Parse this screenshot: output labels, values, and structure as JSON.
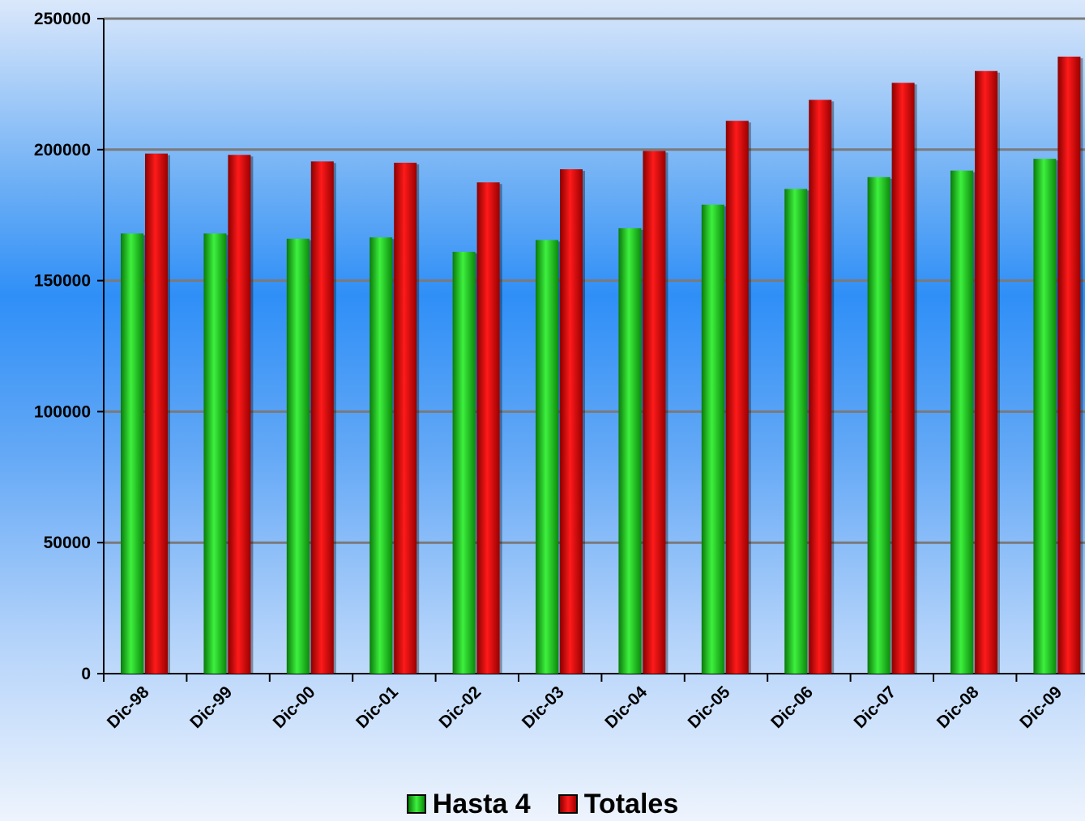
{
  "chart_data": {
    "type": "bar",
    "title": "",
    "xlabel": "",
    "ylabel": "",
    "categories": [
      "Dic-98",
      "Dic-99",
      "Dic-00",
      "Dic-01",
      "Dic-02",
      "Dic-03",
      "Dic-04",
      "Dic-05",
      "Dic-06",
      "Dic-07",
      "Dic-08",
      "Dic-09"
    ],
    "series": [
      {
        "name": "Hasta 4",
        "color": "#22c022",
        "values": [
          168000,
          168000,
          166000,
          166500,
          161000,
          165500,
          170000,
          179000,
          185000,
          189500,
          192000,
          196500
        ]
      },
      {
        "name": "Totales",
        "color": "#e00000",
        "values": [
          198500,
          198000,
          195500,
          195000,
          187500,
          192500,
          199500,
          211000,
          219000,
          225500,
          230000,
          235500
        ]
      }
    ],
    "ylim": [
      0,
      250000
    ],
    "yticks": [
      0,
      50000,
      100000,
      150000,
      200000,
      250000
    ],
    "grid": true,
    "legend": "bottom-center"
  }
}
